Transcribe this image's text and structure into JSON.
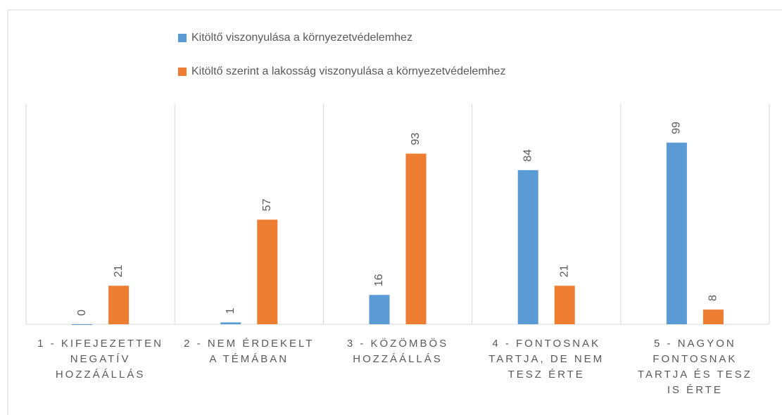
{
  "chart_data": {
    "type": "bar",
    "categories": [
      "1 - KIFEJEZETTEN NEGATÍV HOZZÁÁLLÁS",
      "2 - NEM ÉRDEKELT A TÉMÁBAN",
      "3 - KÖZÖMBÖS HOZZÁÁLLÁS",
      "4 - FONTOSNAK TARTJA, DE NEM TESZ ÉRTE",
      "5 - NAGYON FONTOSNAK TARTJA ÉS TESZ IS ÉRTE"
    ],
    "series": [
      {
        "name": "Kitöltő viszonyulása a környezetvédelemhez",
        "color": "#5b9bd5",
        "values": [
          0,
          1,
          16,
          84,
          99
        ]
      },
      {
        "name": "Kitöltő szerint a lakosság viszonyulása a környezetvédelemhez",
        "color": "#ed7d31",
        "values": [
          21,
          57,
          93,
          21,
          8
        ]
      }
    ],
    "ylim": [
      0,
      120
    ]
  }
}
